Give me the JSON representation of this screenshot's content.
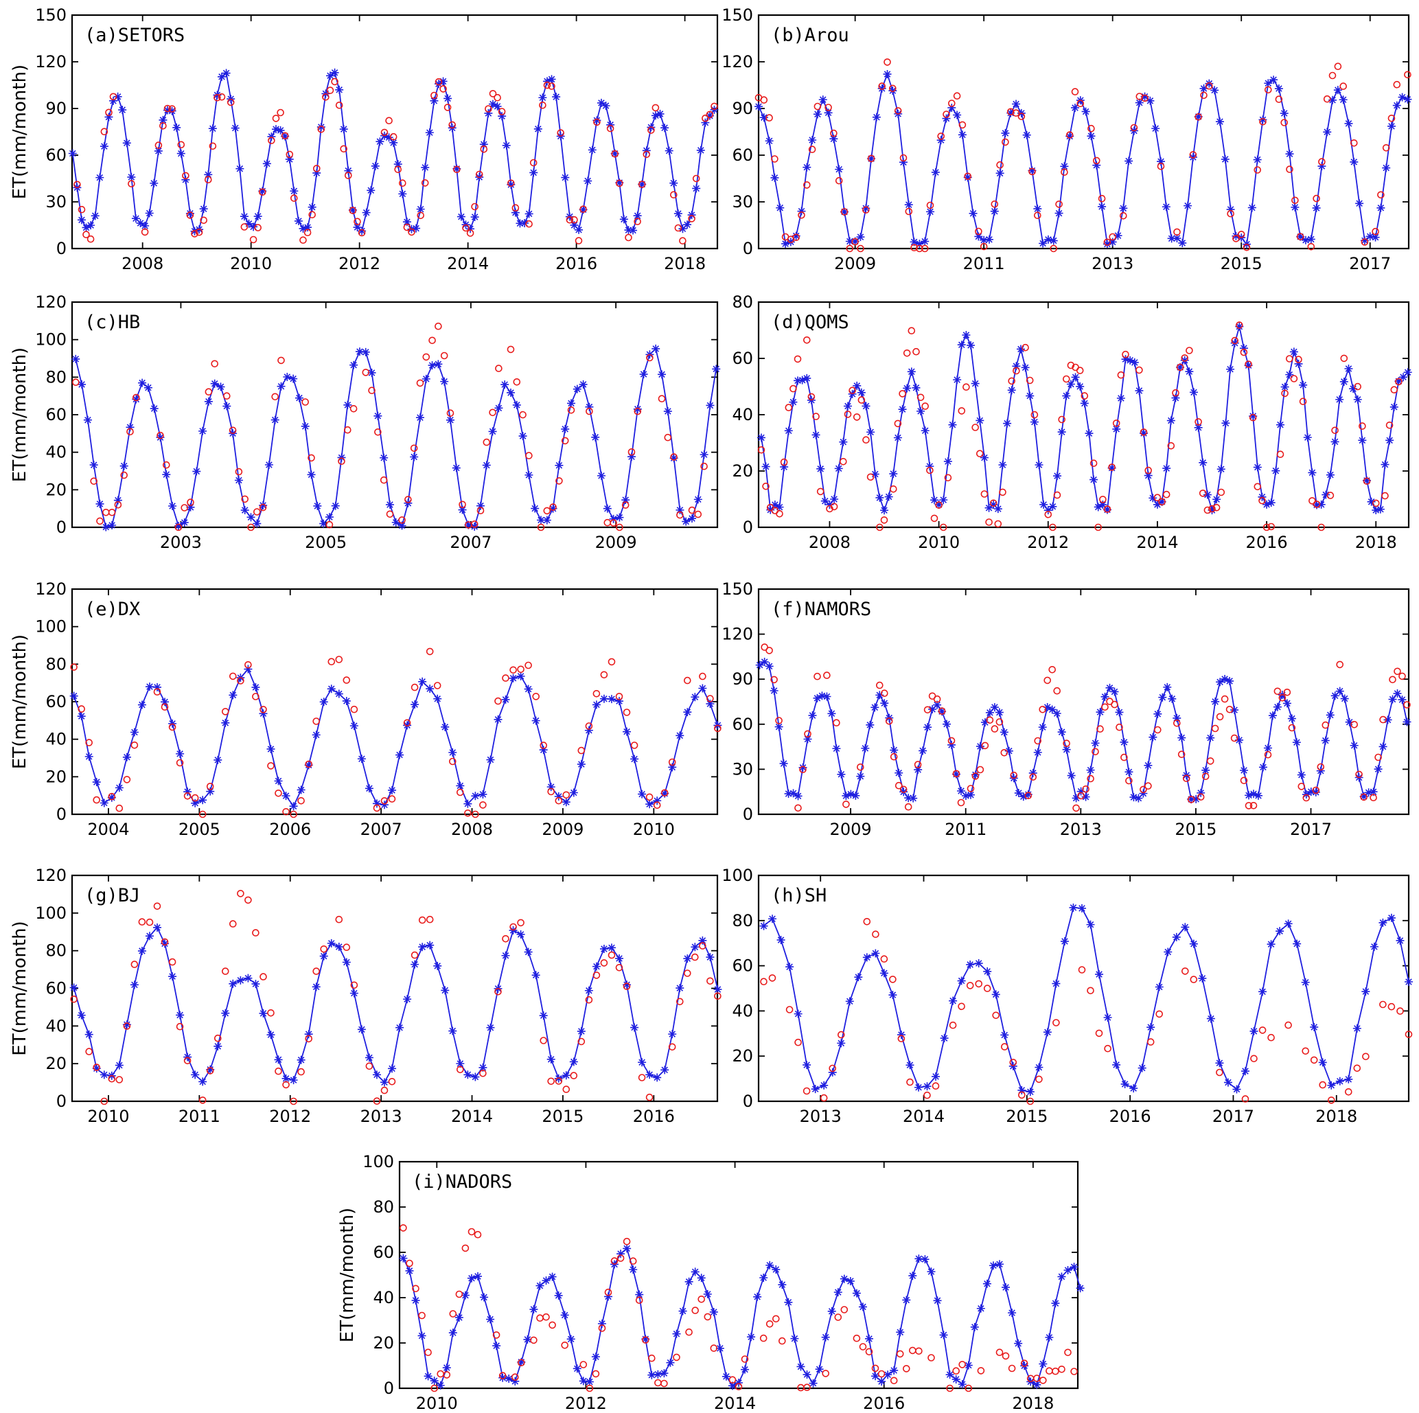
{
  "colors": {
    "model_line": "#1f1fdf",
    "model_marker": "#1f1fdf",
    "observed_marker": "#e81b1b",
    "axis": "#000000"
  },
  "chart_data": [
    {
      "type": "line",
      "title": "(a)SETORS",
      "ylabel": "ET(mm/month)",
      "xlim": [
        2006.7,
        2018.6
      ],
      "ylim": [
        0,
        150
      ],
      "yticks": [
        0,
        30,
        60,
        90,
        120,
        150
      ],
      "xticks": [
        2008,
        2010,
        2012,
        2014,
        2016,
        2018
      ],
      "xticklabels": [
        "2008",
        "2010",
        "2012",
        "2014",
        "2016",
        "2018"
      ],
      "start_year": 2006.71,
      "end_year": 2018.54,
      "amp_sim": [
        88,
        98,
        90,
        112,
        80,
        113,
        74,
        110,
        95,
        110,
        92,
        88
      ],
      "amp_obs": [
        95,
        100,
        92,
        104,
        85,
        103,
        80,
        108,
        100,
        110,
        94,
        90
      ],
      "base_sim": 14,
      "base_obs": 12,
      "phase": 0.5
    },
    {
      "type": "line",
      "title": "(b)Arou",
      "ylabel": "",
      "xlim": [
        2007.5,
        2017.6
      ],
      "ylim": [
        0,
        150
      ],
      "yticks": [
        0,
        30,
        60,
        90,
        120,
        150
      ],
      "xticks": [
        2009,
        2011,
        2013,
        2015,
        2017
      ],
      "xticklabels": [
        "2009",
        "2011",
        "2013",
        "2015",
        "2017"
      ],
      "start_year": 2007.5,
      "end_year": 2017.6,
      "amp_sim": [
        90,
        93,
        110,
        91,
        92,
        95,
        100,
        107,
        110,
        100
      ],
      "amp_obs": [
        103,
        90,
        115,
        97,
        90,
        100,
        98,
        105,
        105,
        116
      ],
      "base_sim": 5,
      "base_obs": 4,
      "phase": 0.55
    },
    {
      "type": "line",
      "title": "(c)HB",
      "ylabel": "ET(mm/month)",
      "xlim": [
        2001.5,
        2010.4
      ],
      "ylim": [
        0,
        120
      ],
      "yticks": [
        0,
        20,
        40,
        60,
        80,
        100,
        120
      ],
      "xticks": [
        2003,
        2005,
        2007,
        2009
      ],
      "xticklabels": [
        "2003",
        "2005",
        "2007",
        "2009"
      ],
      "start_year": 2001.55,
      "end_year": 2010.4,
      "amp_sim": [
        89,
        77,
        77,
        83,
        95,
        88,
        74,
        76,
        95
      ],
      "amp_obs": [
        78,
        72,
        85,
        103,
        78,
        103,
        95,
        74,
        85
      ],
      "base_sim": 3,
      "base_obs": 4,
      "phase": 0.52
    },
    {
      "type": "line",
      "title": "(d)QOMS",
      "ylabel": "",
      "xlim": [
        2006.7,
        2018.6
      ],
      "ylim": [
        0,
        80
      ],
      "yticks": [
        0,
        20,
        40,
        60,
        80
      ],
      "xticks": [
        2008,
        2010,
        2012,
        2014,
        2016,
        2018
      ],
      "xticklabels": [
        "2008",
        "2010",
        "2012",
        "2014",
        "2016",
        "2018"
      ],
      "start_year": 2006.75,
      "end_year": 2018.6,
      "amp_sim": [
        58,
        53,
        52,
        54,
        66,
        62,
        55,
        60,
        61,
        70,
        60,
        55
      ],
      "amp_obs": [
        62,
        68,
        45,
        68,
        45,
        64,
        60,
        63,
        62,
        66,
        58,
        62
      ],
      "base_sim": 9,
      "base_obs": 4,
      "phase": 0.5
    },
    {
      "type": "line",
      "title": "(e)DX",
      "ylabel": "ET(mm/month)",
      "xlim": [
        2003.6,
        2010.7
      ],
      "ylim": [
        0,
        120
      ],
      "yticks": [
        0,
        20,
        40,
        60,
        80,
        100,
        120
      ],
      "xticks": [
        2004,
        2005,
        2006,
        2007,
        2008,
        2009,
        2010
      ],
      "xticklabels": [
        "2004",
        "2005",
        "2006",
        "2007",
        "2008",
        "2009",
        "2010"
      ],
      "start_year": 2003.62,
      "end_year": 2010.7,
      "amp_sim": [
        72,
        70,
        76,
        67,
        70,
        73,
        65
      ],
      "amp_obs": [
        88,
        65,
        78,
        84,
        82,
        85,
        78
      ],
      "base_sim": 7,
      "base_obs": 4,
      "phase": 0.55
    },
    {
      "type": "line",
      "title": "(f)NAMORS",
      "ylabel": "",
      "xlim": [
        2007.4,
        2018.7
      ],
      "ylim": [
        0,
        150
      ],
      "yticks": [
        0,
        30,
        60,
        90,
        120,
        150
      ],
      "xticks": [
        2009,
        2011,
        2013,
        2015,
        2017
      ],
      "xticklabels": [
        "2009",
        "2011",
        "2013",
        "2015",
        "2017"
      ],
      "start_year": 2007.42,
      "end_year": 2018.7,
      "amp_sim": [
        104,
        81,
        77,
        74,
        72,
        72,
        84,
        84,
        91,
        78,
        80
      ],
      "amp_obs": [
        115,
        100,
        80,
        80,
        60,
        90,
        78,
        70,
        70,
        80,
        102
      ],
      "base_sim": 13,
      "base_obs": 10,
      "phase": 0.52
    },
    {
      "type": "line",
      "title": "(g)BJ",
      "ylabel": "ET(mm/month)",
      "xlim": [
        2009.6,
        2016.7
      ],
      "ylim": [
        0,
        120
      ],
      "yticks": [
        0,
        20,
        40,
        60,
        80,
        100,
        120
      ],
      "xticks": [
        2010,
        2011,
        2012,
        2013,
        2014,
        2015,
        2016
      ],
      "xticklabels": [
        "2010",
        "2011",
        "2012",
        "2013",
        "2014",
        "2015",
        "2016"
      ],
      "start_year": 2009.62,
      "end_year": 2016.7,
      "amp_sim": [
        65,
        91,
        68,
        85,
        82,
        92,
        85
      ],
      "amp_obs": [
        60,
        103,
        106,
        100,
        95,
        93,
        80
      ],
      "base_sim": 13,
      "base_obs": 5,
      "phase": 0.55
    },
    {
      "type": "line",
      "title": "(h)SH",
      "ylabel": "",
      "xlim": [
        2012.4,
        2018.7
      ],
      "ylim": [
        0,
        100
      ],
      "yticks": [
        0,
        20,
        40,
        60,
        80,
        100
      ],
      "xticks": [
        2013,
        2014,
        2015,
        2016,
        2017,
        2018
      ],
      "xticklabels": [
        "2013",
        "2014",
        "2015",
        "2016",
        "2017",
        "2018"
      ],
      "start_year": 2012.45,
      "end_year": 2018.7,
      "amp_sim": [
        82,
        66,
        63,
        85,
        76,
        79
      ],
      "amp_obs": [
        60,
        76,
        55,
        53,
        63,
        40
      ],
      "base_sim": 7,
      "base_obs": 4,
      "phase": 0.55
    },
    {
      "type": "line",
      "title": "(i)NADORS",
      "ylabel": "ET(mm/month)",
      "xlim": [
        2009.5,
        2018.6
      ],
      "ylim": [
        0,
        100
      ],
      "yticks": [
        0,
        20,
        40,
        60,
        80,
        100
      ],
      "xticks": [
        2010,
        2012,
        2014,
        2016,
        2018
      ],
      "xticklabels": [
        "2010",
        "2012",
        "2014",
        "2016",
        "2018"
      ],
      "start_year": 2009.55,
      "end_year": 2018.6,
      "amp_sim": [
        60,
        49,
        48,
        62,
        52,
        55,
        51,
        58,
        55
      ],
      "amp_obs": [
        71,
        67,
        30,
        62,
        35,
        30,
        28,
        20,
        12
      ],
      "base_sim": 4,
      "base_obs": 4,
      "phase": 0.52
    }
  ]
}
